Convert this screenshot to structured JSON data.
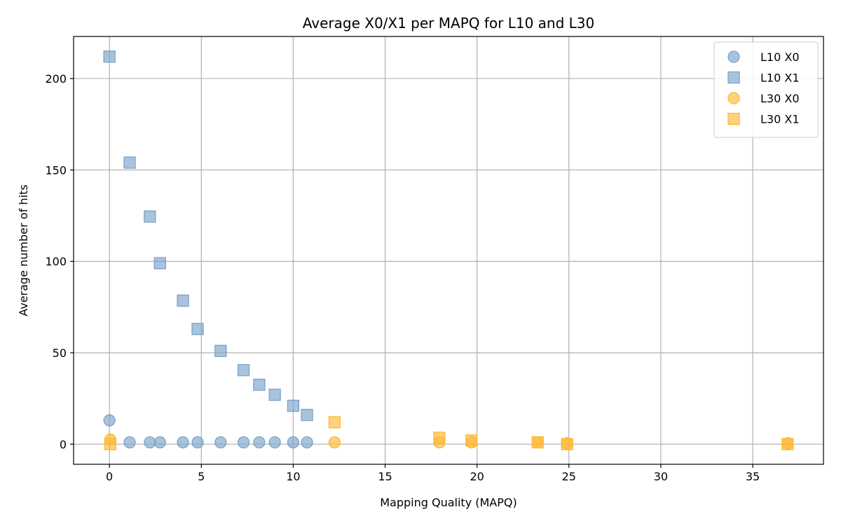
{
  "chart_data": {
    "type": "scatter",
    "title": "Average X0/X1 per MAPQ for L10 and L30",
    "xlabel": "Mapping Quality (MAPQ)",
    "ylabel": "Average number of hits",
    "xlim": [
      -1.95,
      38.85
    ],
    "ylim": [
      -11,
      223
    ],
    "xticks": [
      0,
      5,
      10,
      15,
      20,
      25,
      30,
      35
    ],
    "yticks": [
      0,
      50,
      100,
      150,
      200
    ],
    "grid": true,
    "legend_position": "top-right",
    "series": [
      {
        "name": "L10 X0",
        "marker": "circle",
        "color": "#7ba3c9",
        "x": [
          0,
          1.1,
          2.2,
          2.75,
          4,
          4.8,
          6.05,
          7.3,
          8.15,
          9,
          10,
          10.75
        ],
        "y": [
          13,
          1,
          1,
          1,
          1,
          1,
          1,
          1,
          1,
          1,
          1,
          1
        ]
      },
      {
        "name": "L10 X1",
        "marker": "square",
        "color": "#7ba3c9",
        "x": [
          0,
          1.1,
          2.2,
          2.75,
          4,
          4.8,
          6.05,
          7.3,
          8.15,
          9,
          10,
          10.75
        ],
        "y": [
          212,
          154,
          124.5,
          99,
          78.5,
          63,
          51,
          40.5,
          32.5,
          27,
          21,
          16
        ]
      },
      {
        "name": "L30 X0",
        "marker": "circle",
        "color": "#ffb833",
        "x": [
          0.05,
          12.25,
          17.95,
          19.7,
          23.3,
          24.9,
          36.9
        ],
        "y": [
          2.5,
          1,
          1,
          1,
          1,
          0.5,
          0.5
        ]
      },
      {
        "name": "L30 X1",
        "marker": "square",
        "color": "#ffb833",
        "x": [
          0.05,
          12.25,
          17.95,
          19.7,
          23.3,
          24.9,
          36.9
        ],
        "y": [
          0,
          12,
          3.5,
          2,
          1,
          0,
          0
        ]
      }
    ]
  }
}
